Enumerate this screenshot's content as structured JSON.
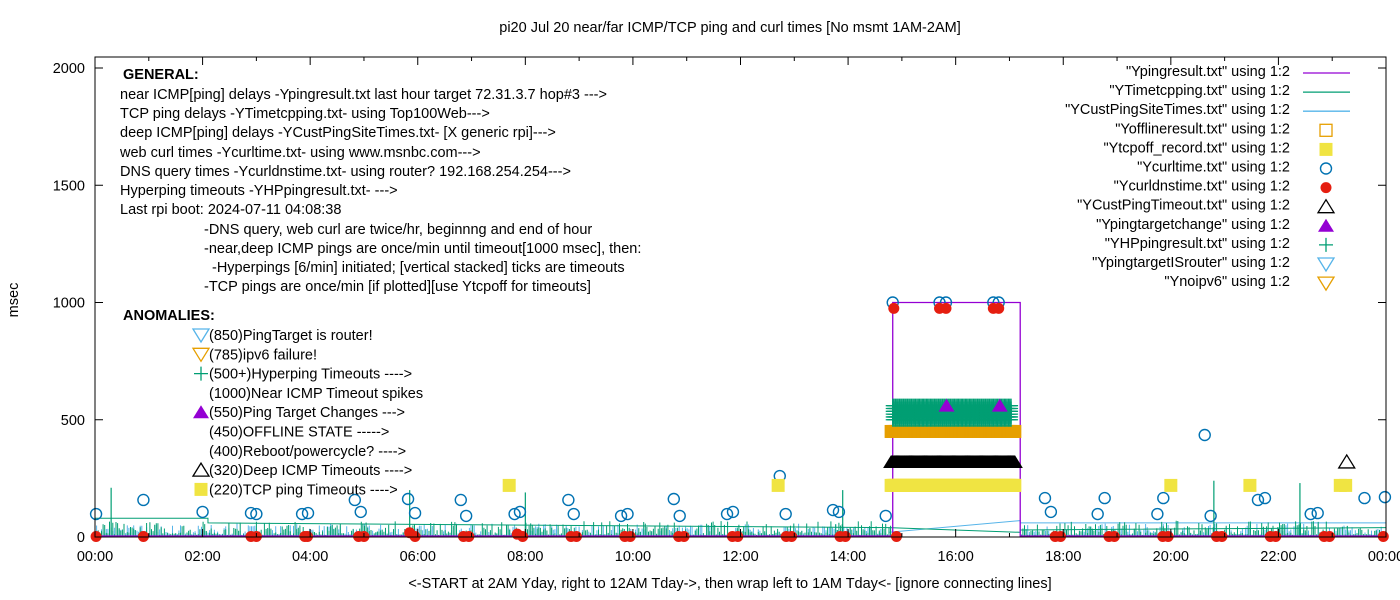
{
  "chart_data": {
    "type": "scatter",
    "title": "pi20 Jul 20  near/far ICMP/TCP ping and curl times [No msmt 1AM-2AM]",
    "xlabel": "<-START at 2AM Yday, right to 12AM Tday->, then wrap left to 1AM Tday<- [ignore connecting lines]",
    "ylabel": "msec",
    "xlim_hours": [
      0,
      24
    ],
    "ylim": [
      0,
      2000
    ],
    "x_ticks": [
      "00:00",
      "02:00",
      "04:00",
      "06:00",
      "08:00",
      "10:00",
      "12:00",
      "14:00",
      "16:00",
      "18:00",
      "20:00",
      "22:00",
      "00:00"
    ],
    "y_ticks": [
      "0",
      "500",
      "1000",
      "1500",
      "2000"
    ],
    "grid": false,
    "legend_position": "top-right",
    "general_notes": {
      "heading": "GENERAL:",
      "lines": [
        "near ICMP[ping] delays -Ypingresult.txt last hour target 72.31.3.7 hop#3 --->",
        "TCP ping delays -YTimetcpping.txt- using Top100Web--->",
        "deep ICMP[ping] delays -YCustPingSiteTimes.txt- [X generic rpi]--->",
        "web curl times -Ycurltime.txt- using www.msnbc.com--->",
        "DNS query times -Ycurldnstime.txt- using router? 192.168.254.254--->",
        "Hyperping timeouts -YHPpingresult.txt- --->",
        "Last rpi boot: 2024-07-11 04:08:38"
      ],
      "sub_lines": [
        "-DNS query, web curl are twice/hr, beginnng and end of hour",
        "-near,deep ICMP pings are once/min until timeout[1000 msec], then:",
        "-Hyperpings [6/min] initiated; [vertical stacked] ticks are timeouts",
        "-TCP pings are once/min [if plotted][use Ytcpoff for timeouts]"
      ]
    },
    "anomalies": {
      "heading": "ANOMALIES:",
      "items": [
        {
          "marker": "tri-down-open",
          "color": "#56b4e9",
          "text": "(850)PingTarget is router!"
        },
        {
          "marker": "tri-down-open",
          "color": "#e69f00",
          "text": "(785)ipv6 failure!"
        },
        {
          "marker": "plus",
          "color": "#009e73",
          "text": "(500+)Hyperping Timeouts ---->"
        },
        {
          "marker": "none",
          "color": "",
          "text": "(1000)Near ICMP Timeout spikes"
        },
        {
          "marker": "tri-up-filled",
          "color": "#9400d3",
          "text": "(550)Ping Target Changes --->"
        },
        {
          "marker": "none",
          "color": "",
          "text": "(450)OFFLINE STATE ----->"
        },
        {
          "marker": "none",
          "color": "",
          "text": "(400)Reboot/powercycle? ---->"
        },
        {
          "marker": "tri-up-open",
          "color": "#000000",
          "text": "(320)Deep ICMP Timeouts ---->"
        },
        {
          "marker": "square-filled",
          "color": "#f0e442",
          "text": "(220)TCP ping Timeouts ---->"
        }
      ]
    },
    "legend": [
      {
        "label": "\"Ypingresult.txt\" using 1:2",
        "style": "line",
        "color": "#9400d3"
      },
      {
        "label": "\"YTimetcpping.txt\" using 1:2",
        "style": "line",
        "color": "#009e73"
      },
      {
        "label": "\"YCustPingSiteTimes.txt\" using 1:2",
        "style": "line",
        "color": "#56b4e9"
      },
      {
        "label": "\"Yofflineresult.txt\" using 1:2",
        "style": "square-open",
        "color": "#e69f00"
      },
      {
        "label": "\"Ytcpoff_record.txt\" using 1:2",
        "style": "square-filled",
        "color": "#f0e442"
      },
      {
        "label": "\"Ycurltime.txt\" using 1:2",
        "style": "circle-open",
        "color": "#0072b2"
      },
      {
        "label": "\"Ycurldnstime.txt\" using 1:2",
        "style": "circle-filled",
        "color": "#e51e10"
      },
      {
        "label": "\"YCustPingTimeout.txt\" using 1:2",
        "style": "tri-up-open",
        "color": "#000000"
      },
      {
        "label": "\"Ypingtargetchange\" using 1:2",
        "style": "tri-up-filled",
        "color": "#9400d3"
      },
      {
        "label": "\"YHPpingresult.txt\" using 1:2",
        "style": "plus",
        "color": "#009e73"
      },
      {
        "label": "\"YpingtargetISrouter\" using 1:2",
        "style": "tri-down-open",
        "color": "#56b4e9"
      },
      {
        "label": "\"Ynoipv6\" using 1:2",
        "style": "tri-down-open",
        "color": "#e69f00"
      }
    ],
    "series": [
      {
        "name": "Ycurltime.txt",
        "style": "circle-open",
        "color": "#0072b2",
        "points": [
          [
            0.02,
            98
          ],
          [
            0.9,
            158
          ],
          [
            2.0,
            107
          ],
          [
            2.9,
            102
          ],
          [
            3.0,
            98
          ],
          [
            3.85,
            98
          ],
          [
            3.96,
            102
          ],
          [
            4.83,
            158
          ],
          [
            4.94,
            107
          ],
          [
            5.82,
            162
          ],
          [
            5.95,
            102
          ],
          [
            6.8,
            158
          ],
          [
            6.9,
            90
          ],
          [
            7.8,
            98
          ],
          [
            7.9,
            107
          ],
          [
            8.8,
            158
          ],
          [
            8.9,
            98
          ],
          [
            9.78,
            90
          ],
          [
            9.9,
            98
          ],
          [
            10.76,
            162
          ],
          [
            10.87,
            90
          ],
          [
            11.75,
            98
          ],
          [
            11.86,
            107
          ],
          [
            12.73,
            260
          ],
          [
            12.84,
            98
          ],
          [
            13.72,
            115
          ],
          [
            13.83,
            107
          ],
          [
            14.7,
            90
          ],
          [
            14.83,
            1000
          ],
          [
            15.7,
            1000
          ],
          [
            15.82,
            1000
          ],
          [
            16.7,
            1000
          ],
          [
            16.8,
            1000
          ],
          [
            17.66,
            166
          ],
          [
            17.77,
            107
          ],
          [
            18.64,
            98
          ],
          [
            18.77,
            166
          ],
          [
            19.75,
            98
          ],
          [
            19.86,
            166
          ],
          [
            20.63,
            435
          ],
          [
            20.74,
            90
          ],
          [
            21.62,
            158
          ],
          [
            21.75,
            166
          ],
          [
            22.6,
            98
          ],
          [
            22.73,
            102
          ],
          [
            23.6,
            166
          ],
          [
            23.98,
            170
          ]
        ]
      },
      {
        "name": "Ycurldnstime.txt",
        "style": "circle-filled",
        "color": "#e51e10",
        "points": [
          [
            0.02,
            2
          ],
          [
            0.9,
            2
          ],
          [
            2.9,
            2
          ],
          [
            3.0,
            2
          ],
          [
            3.9,
            2
          ],
          [
            3.95,
            2
          ],
          [
            4.9,
            2
          ],
          [
            5.0,
            2
          ],
          [
            5.85,
            18
          ],
          [
            5.95,
            2
          ],
          [
            6.85,
            2
          ],
          [
            6.95,
            2
          ],
          [
            7.85,
            12
          ],
          [
            7.95,
            2
          ],
          [
            8.85,
            2
          ],
          [
            8.95,
            2
          ],
          [
            9.85,
            2
          ],
          [
            9.95,
            2
          ],
          [
            10.85,
            2
          ],
          [
            10.95,
            2
          ],
          [
            11.85,
            2
          ],
          [
            11.95,
            2
          ],
          [
            12.85,
            2
          ],
          [
            12.95,
            2
          ],
          [
            13.85,
            2
          ],
          [
            13.95,
            2
          ],
          [
            14.85,
            975
          ],
          [
            14.9,
            2
          ],
          [
            15.7,
            975
          ],
          [
            15.82,
            975
          ],
          [
            16.7,
            975
          ],
          [
            16.8,
            975
          ],
          [
            17.85,
            2
          ],
          [
            17.95,
            2
          ],
          [
            18.85,
            2
          ],
          [
            18.95,
            2
          ],
          [
            19.85,
            2
          ],
          [
            19.95,
            2
          ],
          [
            20.85,
            2
          ],
          [
            20.95,
            2
          ],
          [
            21.85,
            2
          ],
          [
            21.95,
            2
          ],
          [
            22.85,
            2
          ],
          [
            22.95,
            2
          ],
          [
            23.95,
            2
          ]
        ]
      },
      {
        "name": "Ytcpoff_record.txt",
        "style": "square-filled",
        "color": "#f0e442",
        "points": [
          [
            7.7,
            220
          ],
          [
            12.7,
            220
          ],
          [
            20.0,
            220
          ],
          [
            21.47,
            220
          ],
          [
            23.15,
            220
          ],
          [
            23.25,
            220
          ]
        ],
        "band": {
          "from": 14.75,
          "to": 17.1,
          "y": 220
        }
      },
      {
        "name": "Yofflineresult.txt",
        "style": "square-filled-orange",
        "color": "#e69f00",
        "band": {
          "from": 14.75,
          "to": 17.1,
          "y": 450
        }
      },
      {
        "name": "YCustPingTimeout.txt",
        "style": "tri-up-filled-band",
        "color": "#000000",
        "points": [
          [
            23.27,
            320
          ]
        ],
        "band": {
          "from": 14.75,
          "to": 17.1,
          "y": 320
        }
      },
      {
        "name": "YHPpingresult.txt",
        "style": "plus",
        "color": "#009e73",
        "band": {
          "from": 14.75,
          "to": 17.05,
          "y_from": 500,
          "y_to": 560
        }
      },
      {
        "name": "Ypingtargetchange",
        "style": "tri-up-filled",
        "color": "#9400d3",
        "points": [
          [
            15.83,
            560
          ],
          [
            16.82,
            560
          ]
        ]
      },
      {
        "name": "Ypingresult.txt",
        "style": "line",
        "color": "#9400d3",
        "baseline": 4,
        "spike_box": {
          "from": 14.83,
          "to": 17.2,
          "y": 1000
        }
      },
      {
        "name": "YTimetcpping.txt",
        "style": "line",
        "color": "#009e73",
        "baseline": 30,
        "noise_amplitude": 60,
        "spikes": [
          [
            0.3,
            210
          ],
          [
            5.85,
            200
          ],
          [
            8.0,
            190
          ],
          [
            13.9,
            200
          ],
          [
            20.8,
            240
          ],
          [
            22.4,
            230
          ]
        ],
        "connector": [
          [
            0,
            80
          ],
          [
            2.1,
            80
          ],
          [
            2.1,
            60
          ],
          [
            14.75,
            40
          ],
          [
            17.2,
            20
          ],
          [
            17.2,
            30
          ],
          [
            24,
            40
          ]
        ]
      },
      {
        "name": "YCustPingSiteTimes.txt",
        "style": "line",
        "color": "#56b4e9",
        "baseline": 25,
        "noise_amplitude": 50,
        "connector": [
          [
            14.75,
            20
          ],
          [
            17.2,
            70
          ],
          [
            17.2,
            60
          ],
          [
            24,
            60
          ]
        ]
      }
    ]
  }
}
